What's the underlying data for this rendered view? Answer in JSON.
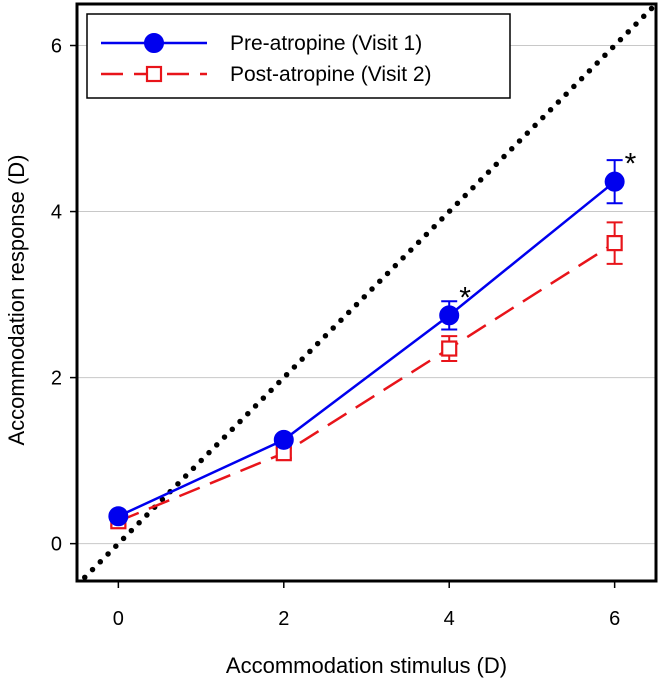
{
  "chart_data": {
    "type": "line",
    "title": "",
    "xlabel": "Accommodation stimulus (D)",
    "ylabel": "Accommodation response (D)",
    "xlim": [
      -0.5,
      6.5
    ],
    "ylim": [
      -0.45,
      6.5
    ],
    "x_ticks": [
      0,
      2,
      4,
      6
    ],
    "y_ticks": [
      0,
      2,
      4,
      6
    ],
    "grid": "horizontal",
    "legend_position": "top-left",
    "reference_line": {
      "name": "1:1 line",
      "x": [
        -0.5,
        6.5
      ],
      "y": [
        -0.5,
        6.5
      ],
      "style": "dotted",
      "color": "#000000"
    },
    "series": [
      {
        "name": "Pre-atropine (Visit 1)",
        "color": "#0000ee",
        "marker": "filled-circle",
        "line_style": "solid",
        "x": [
          0,
          2,
          4,
          6
        ],
        "values": [
          0.33,
          1.25,
          2.75,
          4.36
        ],
        "error": [
          0.05,
          0.06,
          0.17,
          0.26
        ]
      },
      {
        "name": "Post-atropine (Visit 2)",
        "color": "#e8141a",
        "marker": "open-square",
        "line_style": "dashed",
        "x": [
          0,
          2,
          4,
          6
        ],
        "values": [
          0.27,
          1.09,
          2.35,
          3.62
        ],
        "error": [
          0.06,
          0.06,
          0.15,
          0.25
        ]
      }
    ],
    "annotations": [
      {
        "text": "*",
        "x": 4,
        "y": 2.75
      },
      {
        "text": "*",
        "x": 6,
        "y": 4.36
      }
    ]
  }
}
